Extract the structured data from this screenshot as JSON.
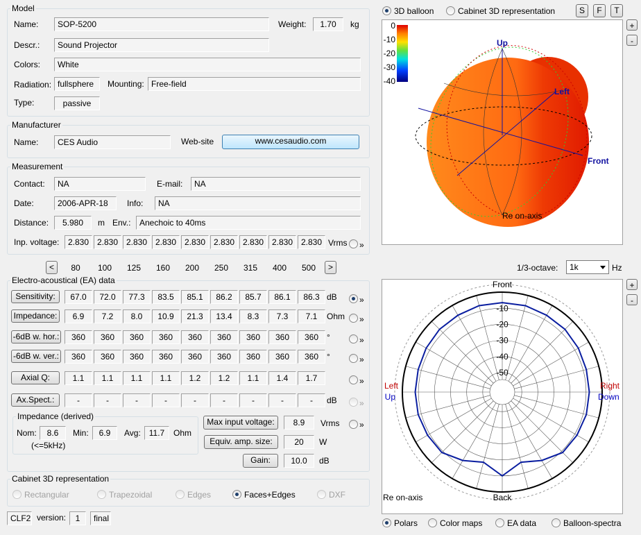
{
  "model": {
    "title": "Model",
    "name_label": "Name:",
    "name": "SOP-5200",
    "weight_label": "Weight:",
    "weight": "1.70",
    "weight_unit": "kg",
    "descr_label": "Descr.:",
    "descr": "Sound Projector",
    "colors_label": "Colors:",
    "colors": "White",
    "radiation_label": "Radiation:",
    "radiation": "fullsphere",
    "mounting_label": "Mounting:",
    "mounting": "Free-field",
    "type_label": "Type:",
    "type": "passive"
  },
  "manufacturer": {
    "title": "Manufacturer",
    "name_label": "Name:",
    "name": "CES Audio",
    "website_label": "Web-site",
    "website": "www.cesaudio.com"
  },
  "measurement": {
    "title": "Measurement",
    "contact_label": "Contact:",
    "contact": "NA",
    "email_label": "E-mail:",
    "email": "NA",
    "date_label": "Date:",
    "date": "2006-APR-18",
    "info_label": "Info:",
    "info": "NA",
    "distance_label": "Distance:",
    "distance": "5.980",
    "distance_unit": "m",
    "env_label": "Env.:",
    "env": "Anechoic to 40ms",
    "voltage_label": "Inp. voltage:",
    "voltages": [
      "2.830",
      "2.830",
      "2.830",
      "2.830",
      "2.830",
      "2.830",
      "2.830",
      "2.830",
      "2.830"
    ],
    "voltage_unit": "Vrms",
    "expand": "»"
  },
  "frequency_nav": {
    "prev": "<",
    "next": ">",
    "frequencies": [
      80,
      100,
      125,
      160,
      200,
      250,
      315,
      400,
      500
    ]
  },
  "ea_data": {
    "title": "Electro-acoustical (EA) data",
    "selected": 0,
    "rows": [
      {
        "label": "Sensitivity:",
        "values": [
          "67.0",
          "72.0",
          "77.3",
          "83.5",
          "85.1",
          "86.2",
          "85.7",
          "86.1",
          "86.3"
        ],
        "unit": "dB",
        "expand": "»"
      },
      {
        "label": "Impedance:",
        "values": [
          "6.9",
          "7.2",
          "8.0",
          "10.9",
          "21.3",
          "13.4",
          "8.3",
          "7.3",
          "7.1"
        ],
        "unit": "Ohm",
        "expand": "»"
      },
      {
        "label": "-6dB w. hor.:",
        "values": [
          "360",
          "360",
          "360",
          "360",
          "360",
          "360",
          "360",
          "360",
          "360"
        ],
        "unit": "°",
        "expand": "»"
      },
      {
        "label": "-6dB w. ver.:",
        "values": [
          "360",
          "360",
          "360",
          "360",
          "360",
          "360",
          "360",
          "360",
          "360"
        ],
        "unit": "°",
        "expand": "»"
      },
      {
        "label": "Axial Q:",
        "values": [
          "1.1",
          "1.1",
          "1.1",
          "1.1",
          "1.2",
          "1.2",
          "1.1",
          "1.4",
          "1.7"
        ],
        "expand": "»"
      },
      {
        "label": "Ax.Spect.:",
        "values": [
          "-",
          "-",
          "-",
          "-",
          "-",
          "-",
          "-",
          "-",
          "-"
        ],
        "unit": "dB",
        "expand": "»"
      }
    ]
  },
  "impedance_derived": {
    "title": "Impedance (derived)",
    "nom_label": "Nom:",
    "nom": "8.6",
    "min_label": "Min:",
    "min": "6.9",
    "avg_label": "Avg:",
    "avg": "11.7",
    "unit": "Ohm",
    "note": "(<=5kHz)"
  },
  "amplifier": {
    "max_voltage_label": "Max input voltage:",
    "max_voltage": "8.9",
    "max_voltage_unit": "Vrms",
    "expand": "»",
    "amp_size_label": "Equiv. amp. size:",
    "amp_size": "20",
    "amp_size_unit": "W",
    "gain_label": "Gain:",
    "gain": "10.0",
    "gain_unit": "dB"
  },
  "cabinet": {
    "title": "Cabinet 3D representation",
    "options": [
      "Rectangular",
      "Trapezoidal",
      "Edges",
      "Faces+Edges",
      "DXF"
    ],
    "selected": 3
  },
  "footer": {
    "format": "CLF2",
    "version_label": "version:",
    "version": "1",
    "status": "final"
  },
  "view_tabs": {
    "options": [
      "3D balloon",
      "Cabinet 3D representation"
    ],
    "selected": 0,
    "buttons": [
      "S",
      "F",
      "T"
    ],
    "zoom": [
      "+",
      "-"
    ]
  },
  "balloon": {
    "clim": [
      0,
      -40
    ],
    "colorbar_ticks": [
      0,
      -10,
      -20,
      -30,
      -40
    ],
    "up": "Up",
    "left": "Left",
    "front": "Front",
    "reference": "Re on-axis"
  },
  "band": {
    "label": "1/3-octave:",
    "frequency": "1k",
    "unit": "Hz"
  },
  "polar": {
    "top": "Front",
    "bottom": "Back",
    "left": [
      "Left",
      "Up"
    ],
    "right": [
      "Right",
      "Down"
    ],
    "reference": "Re on-axis",
    "rlim": [
      -60,
      0
    ],
    "rticks": [
      -10,
      -20,
      -30,
      -40,
      -50
    ],
    "color": "#0a1ea0",
    "angles": [
      0,
      15,
      30,
      45,
      60,
      75,
      90,
      105,
      120,
      135,
      150,
      165,
      180,
      195,
      210,
      225,
      240,
      255,
      270,
      285,
      300,
      315,
      330,
      345
    ],
    "values": [
      -6.5,
      -6.5,
      -7,
      -7,
      -7.5,
      -8,
      -8,
      -8,
      -8.5,
      -9,
      -13,
      -17,
      -10,
      -17,
      -13,
      -9,
      -8.5,
      -8,
      -8,
      -8,
      -7.5,
      -7,
      -7,
      -6.5
    ]
  },
  "plot_tabs": {
    "options": [
      "Polars",
      "Color maps",
      "EA data",
      "Balloon-spectra"
    ],
    "selected": 0
  }
}
